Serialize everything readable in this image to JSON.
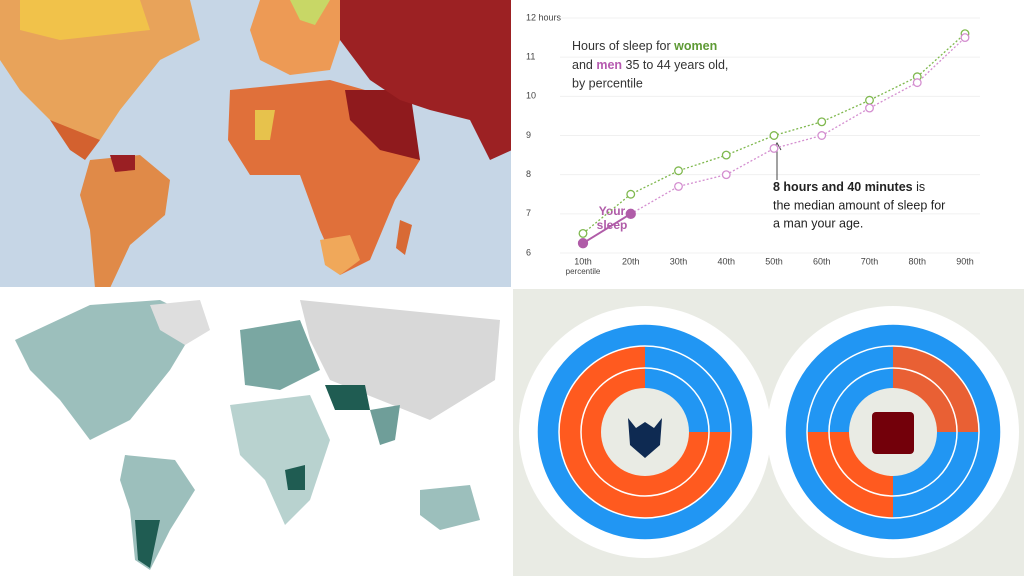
{
  "chart_data": {
    "type": "line",
    "title_parts": [
      "Hours of sleep for",
      "and",
      "35 to 44 years old,",
      "by percentile"
    ],
    "categories": [
      "10th",
      "20th",
      "30th",
      "40th",
      "50th",
      "60th",
      "70th",
      "80th",
      "90th"
    ],
    "x_note": "percentile",
    "series": [
      {
        "name": "women",
        "color": "#7fb84e",
        "values": [
          6.5,
          7.5,
          8.1,
          8.5,
          9.0,
          9.35,
          9.9,
          10.5,
          11.6
        ]
      },
      {
        "name": "men",
        "color": "#d48fd0",
        "values": [
          6.25,
          7.0,
          7.7,
          8.0,
          8.67,
          9.0,
          9.7,
          10.35,
          11.5
        ]
      }
    ],
    "ylim": [
      6,
      12
    ],
    "yticks": [
      6,
      7,
      8,
      9,
      10,
      11,
      {
        "value": 12,
        "label": "12 hours"
      }
    ],
    "grid": true,
    "annotation": {
      "bold": "8 hours and 40 minutes",
      "lines": [
        "is",
        "the median amount of sleep for",
        "a man your age."
      ]
    },
    "your_sleep": [
      "Your",
      "sleep"
    ]
  }
}
